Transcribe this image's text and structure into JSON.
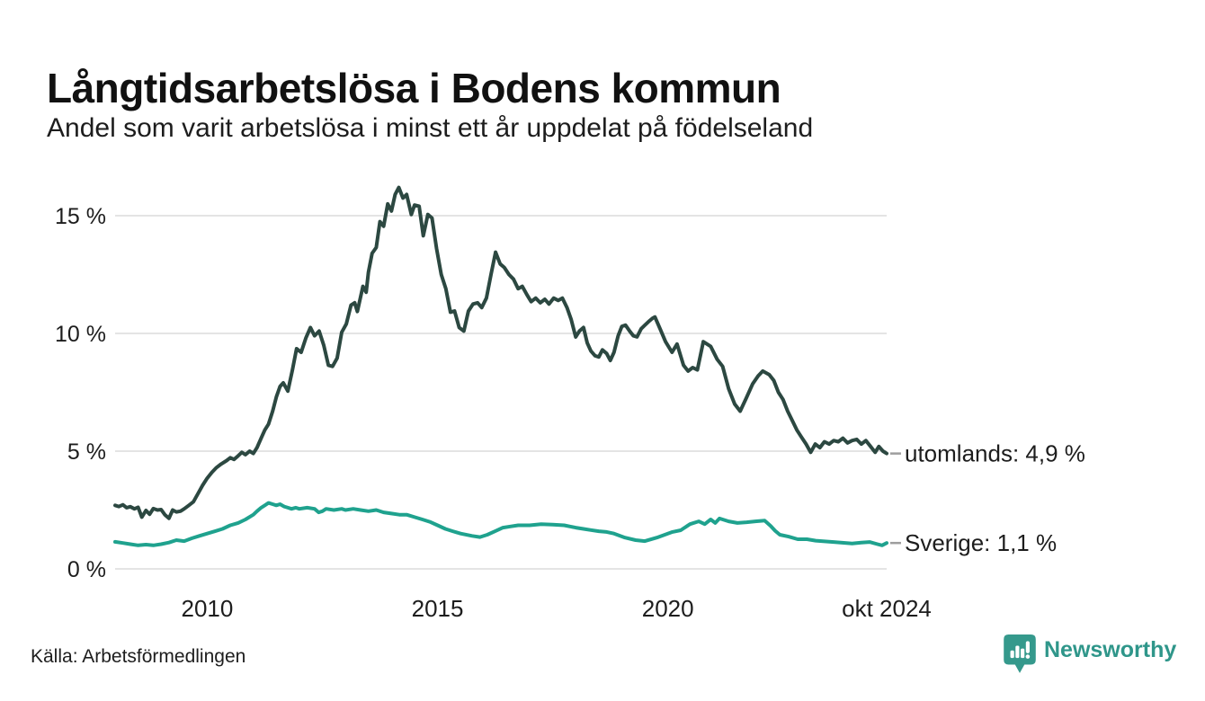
{
  "footer": {
    "source": "Källa: Arbetsförmedlingen",
    "brand": {
      "name": "Newsworthy",
      "icon": "newsworthy-bubble-chart-icon",
      "color": "#35998c"
    }
  },
  "chart_data": {
    "type": "line",
    "title": "Långtidsarbetslösa i Bodens kommun",
    "subtitle": "Andel som varit arbetslösa i minst ett år uppdelat på födelseland",
    "unit": "%",
    "legend_position": "line-end",
    "x_axis": {
      "range": [
        2008.0,
        2024.75
      ],
      "grid": false,
      "ticks": [
        {
          "label": "2010",
          "value": 2010.0
        },
        {
          "label": "2015",
          "value": 2015.0
        },
        {
          "label": "2020",
          "value": 2020.0
        },
        {
          "label": "okt 2024",
          "value": 2024.75
        }
      ]
    },
    "y_axis": {
      "range": [
        0,
        16.5
      ],
      "grid": true,
      "ticks": [
        {
          "label": "0 %",
          "value": 0
        },
        {
          "label": "5 %",
          "value": 5
        },
        {
          "label": "10 %",
          "value": 10
        },
        {
          "label": "15 %",
          "value": 15
        }
      ]
    },
    "series": [
      {
        "name": "utomlands",
        "end_label": "utomlands: 4,9 %",
        "last_value_label": "4,9 %",
        "color": "#2c4841",
        "points": [
          [
            2008.0,
            2.7
          ],
          [
            2008.08,
            2.65
          ],
          [
            2008.17,
            2.72
          ],
          [
            2008.25,
            2.6
          ],
          [
            2008.33,
            2.64
          ],
          [
            2008.42,
            2.55
          ],
          [
            2008.5,
            2.62
          ],
          [
            2008.58,
            2.2
          ],
          [
            2008.67,
            2.48
          ],
          [
            2008.75,
            2.32
          ],
          [
            2008.83,
            2.56
          ],
          [
            2008.92,
            2.5
          ],
          [
            2009.0,
            2.52
          ],
          [
            2009.08,
            2.3
          ],
          [
            2009.17,
            2.15
          ],
          [
            2009.25,
            2.5
          ],
          [
            2009.33,
            2.42
          ],
          [
            2009.42,
            2.45
          ],
          [
            2009.5,
            2.55
          ],
          [
            2009.6,
            2.7
          ],
          [
            2009.7,
            2.85
          ],
          [
            2009.8,
            3.2
          ],
          [
            2009.9,
            3.55
          ],
          [
            2010.0,
            3.85
          ],
          [
            2010.1,
            4.1
          ],
          [
            2010.2,
            4.3
          ],
          [
            2010.3,
            4.45
          ],
          [
            2010.42,
            4.6
          ],
          [
            2010.5,
            4.72
          ],
          [
            2010.58,
            4.65
          ],
          [
            2010.67,
            4.8
          ],
          [
            2010.75,
            4.95
          ],
          [
            2010.83,
            4.85
          ],
          [
            2010.92,
            5.0
          ],
          [
            2011.0,
            4.9
          ],
          [
            2011.08,
            5.15
          ],
          [
            2011.17,
            5.55
          ],
          [
            2011.25,
            5.9
          ],
          [
            2011.33,
            6.15
          ],
          [
            2011.42,
            6.7
          ],
          [
            2011.5,
            7.3
          ],
          [
            2011.58,
            7.75
          ],
          [
            2011.65,
            7.9
          ],
          [
            2011.75,
            7.55
          ],
          [
            2011.85,
            8.45
          ],
          [
            2011.94,
            9.35
          ],
          [
            2012.04,
            9.2
          ],
          [
            2012.14,
            9.8
          ],
          [
            2012.24,
            10.25
          ],
          [
            2012.33,
            9.9
          ],
          [
            2012.43,
            10.1
          ],
          [
            2012.53,
            9.5
          ],
          [
            2012.63,
            8.65
          ],
          [
            2012.72,
            8.6
          ],
          [
            2012.82,
            8.95
          ],
          [
            2012.92,
            10.05
          ],
          [
            2013.02,
            10.4
          ],
          [
            2013.12,
            11.2
          ],
          [
            2013.2,
            11.3
          ],
          [
            2013.26,
            10.93
          ],
          [
            2013.38,
            12.0
          ],
          [
            2013.45,
            11.75
          ],
          [
            2013.5,
            12.6
          ],
          [
            2013.58,
            13.4
          ],
          [
            2013.67,
            13.65
          ],
          [
            2013.75,
            14.75
          ],
          [
            2013.83,
            14.55
          ],
          [
            2013.92,
            15.5
          ],
          [
            2014.0,
            15.2
          ],
          [
            2014.08,
            15.9
          ],
          [
            2014.16,
            16.2
          ],
          [
            2014.25,
            15.75
          ],
          [
            2014.33,
            15.9
          ],
          [
            2014.43,
            15.05
          ],
          [
            2014.5,
            15.45
          ],
          [
            2014.6,
            15.4
          ],
          [
            2014.69,
            14.15
          ],
          [
            2014.79,
            15.05
          ],
          [
            2014.88,
            14.9
          ],
          [
            2014.98,
            13.6
          ],
          [
            2015.08,
            12.5
          ],
          [
            2015.18,
            11.9
          ],
          [
            2015.28,
            10.9
          ],
          [
            2015.37,
            10.95
          ],
          [
            2015.47,
            10.25
          ],
          [
            2015.57,
            10.1
          ],
          [
            2015.67,
            10.95
          ],
          [
            2015.77,
            11.25
          ],
          [
            2015.87,
            11.3
          ],
          [
            2015.96,
            11.1
          ],
          [
            2016.06,
            11.5
          ],
          [
            2016.16,
            12.5
          ],
          [
            2016.26,
            13.45
          ],
          [
            2016.36,
            12.95
          ],
          [
            2016.45,
            12.8
          ],
          [
            2016.55,
            12.5
          ],
          [
            2016.65,
            12.3
          ],
          [
            2016.75,
            11.9
          ],
          [
            2016.84,
            12.0
          ],
          [
            2016.94,
            11.65
          ],
          [
            2017.03,
            11.35
          ],
          [
            2017.13,
            11.5
          ],
          [
            2017.23,
            11.3
          ],
          [
            2017.33,
            11.45
          ],
          [
            2017.42,
            11.25
          ],
          [
            2017.52,
            11.5
          ],
          [
            2017.62,
            11.4
          ],
          [
            2017.71,
            11.5
          ],
          [
            2017.81,
            11.1
          ],
          [
            2017.9,
            10.6
          ],
          [
            2018.0,
            9.85
          ],
          [
            2018.08,
            10.1
          ],
          [
            2018.17,
            10.25
          ],
          [
            2018.25,
            9.6
          ],
          [
            2018.33,
            9.25
          ],
          [
            2018.42,
            9.05
          ],
          [
            2018.5,
            9.0
          ],
          [
            2018.58,
            9.3
          ],
          [
            2018.67,
            9.15
          ],
          [
            2018.75,
            8.85
          ],
          [
            2018.83,
            9.2
          ],
          [
            2018.92,
            9.9
          ],
          [
            2019.0,
            10.3
          ],
          [
            2019.08,
            10.35
          ],
          [
            2019.17,
            10.1
          ],
          [
            2019.25,
            9.9
          ],
          [
            2019.33,
            9.85
          ],
          [
            2019.42,
            10.2
          ],
          [
            2019.5,
            10.35
          ],
          [
            2019.58,
            10.5
          ],
          [
            2019.67,
            10.65
          ],
          [
            2019.72,
            10.7
          ],
          [
            2019.83,
            10.2
          ],
          [
            2019.95,
            9.65
          ],
          [
            2020.09,
            9.2
          ],
          [
            2020.2,
            9.55
          ],
          [
            2020.34,
            8.65
          ],
          [
            2020.44,
            8.4
          ],
          [
            2020.54,
            8.55
          ],
          [
            2020.64,
            8.45
          ],
          [
            2020.77,
            9.65
          ],
          [
            2020.93,
            9.45
          ],
          [
            2021.07,
            8.9
          ],
          [
            2021.19,
            8.6
          ],
          [
            2021.32,
            7.65
          ],
          [
            2021.45,
            7.0
          ],
          [
            2021.57,
            6.7
          ],
          [
            2021.7,
            7.25
          ],
          [
            2021.84,
            7.85
          ],
          [
            2021.96,
            8.2
          ],
          [
            2022.06,
            8.4
          ],
          [
            2022.2,
            8.25
          ],
          [
            2022.3,
            8.0
          ],
          [
            2022.4,
            7.5
          ],
          [
            2022.5,
            7.2
          ],
          [
            2022.6,
            6.7
          ],
          [
            2022.7,
            6.3
          ],
          [
            2022.8,
            5.9
          ],
          [
            2022.9,
            5.6
          ],
          [
            2023.0,
            5.3
          ],
          [
            2023.1,
            4.95
          ],
          [
            2023.2,
            5.3
          ],
          [
            2023.3,
            5.15
          ],
          [
            2023.4,
            5.4
          ],
          [
            2023.5,
            5.3
          ],
          [
            2023.6,
            5.45
          ],
          [
            2023.7,
            5.4
          ],
          [
            2023.8,
            5.55
          ],
          [
            2023.9,
            5.35
          ],
          [
            2024.0,
            5.45
          ],
          [
            2024.1,
            5.5
          ],
          [
            2024.2,
            5.3
          ],
          [
            2024.3,
            5.45
          ],
          [
            2024.4,
            5.2
          ],
          [
            2024.5,
            4.95
          ],
          [
            2024.58,
            5.2
          ],
          [
            2024.67,
            5.0
          ],
          [
            2024.75,
            4.9
          ]
        ]
      },
      {
        "name": "Sverige",
        "end_label": "Sverige: 1,1 %",
        "last_value_label": "1,1 %",
        "color": "#1fa28e",
        "points": [
          [
            2008.0,
            1.15
          ],
          [
            2008.17,
            1.1
          ],
          [
            2008.33,
            1.05
          ],
          [
            2008.5,
            1.0
          ],
          [
            2008.67,
            1.03
          ],
          [
            2008.83,
            1.0
          ],
          [
            2009.0,
            1.05
          ],
          [
            2009.17,
            1.12
          ],
          [
            2009.33,
            1.22
          ],
          [
            2009.5,
            1.18
          ],
          [
            2009.67,
            1.3
          ],
          [
            2009.83,
            1.4
          ],
          [
            2010.0,
            1.5
          ],
          [
            2010.17,
            1.6
          ],
          [
            2010.33,
            1.7
          ],
          [
            2010.5,
            1.85
          ],
          [
            2010.67,
            1.95
          ],
          [
            2010.83,
            2.1
          ],
          [
            2011.0,
            2.3
          ],
          [
            2011.08,
            2.45
          ],
          [
            2011.17,
            2.6
          ],
          [
            2011.25,
            2.7
          ],
          [
            2011.33,
            2.8
          ],
          [
            2011.42,
            2.75
          ],
          [
            2011.5,
            2.7
          ],
          [
            2011.58,
            2.75
          ],
          [
            2011.67,
            2.65
          ],
          [
            2011.75,
            2.6
          ],
          [
            2011.83,
            2.55
          ],
          [
            2011.92,
            2.6
          ],
          [
            2012.0,
            2.55
          ],
          [
            2012.17,
            2.6
          ],
          [
            2012.33,
            2.55
          ],
          [
            2012.42,
            2.4
          ],
          [
            2012.5,
            2.45
          ],
          [
            2012.58,
            2.55
          ],
          [
            2012.75,
            2.5
          ],
          [
            2012.92,
            2.55
          ],
          [
            2013.0,
            2.5
          ],
          [
            2013.17,
            2.55
          ],
          [
            2013.33,
            2.5
          ],
          [
            2013.5,
            2.45
          ],
          [
            2013.67,
            2.5
          ],
          [
            2013.83,
            2.4
          ],
          [
            2014.0,
            2.35
          ],
          [
            2014.17,
            2.3
          ],
          [
            2014.33,
            2.3
          ],
          [
            2014.5,
            2.2
          ],
          [
            2014.67,
            2.1
          ],
          [
            2014.83,
            2.0
          ],
          [
            2015.0,
            1.85
          ],
          [
            2015.17,
            1.7
          ],
          [
            2015.33,
            1.6
          ],
          [
            2015.5,
            1.5
          ],
          [
            2015.75,
            1.4
          ],
          [
            2015.92,
            1.35
          ],
          [
            2016.08,
            1.45
          ],
          [
            2016.25,
            1.6
          ],
          [
            2016.42,
            1.75
          ],
          [
            2016.58,
            1.8
          ],
          [
            2016.75,
            1.85
          ],
          [
            2017.0,
            1.85
          ],
          [
            2017.25,
            1.9
          ],
          [
            2017.5,
            1.88
          ],
          [
            2017.75,
            1.85
          ],
          [
            2018.0,
            1.75
          ],
          [
            2018.17,
            1.7
          ],
          [
            2018.33,
            1.65
          ],
          [
            2018.5,
            1.6
          ],
          [
            2018.67,
            1.57
          ],
          [
            2018.83,
            1.5
          ],
          [
            2019.07,
            1.33
          ],
          [
            2019.3,
            1.22
          ],
          [
            2019.5,
            1.18
          ],
          [
            2019.76,
            1.33
          ],
          [
            2020.1,
            1.57
          ],
          [
            2020.28,
            1.64
          ],
          [
            2020.48,
            1.9
          ],
          [
            2020.67,
            2.02
          ],
          [
            2020.8,
            1.9
          ],
          [
            2020.93,
            2.1
          ],
          [
            2021.03,
            1.95
          ],
          [
            2021.12,
            2.14
          ],
          [
            2021.32,
            2.02
          ],
          [
            2021.51,
            1.95
          ],
          [
            2021.71,
            1.98
          ],
          [
            2021.9,
            2.02
          ],
          [
            2022.1,
            2.05
          ],
          [
            2022.23,
            1.83
          ],
          [
            2022.33,
            1.62
          ],
          [
            2022.43,
            1.45
          ],
          [
            2022.62,
            1.37
          ],
          [
            2022.82,
            1.26
          ],
          [
            2023.02,
            1.26
          ],
          [
            2023.21,
            1.2
          ],
          [
            2023.6,
            1.14
          ],
          [
            2024.0,
            1.08
          ],
          [
            2024.2,
            1.12
          ],
          [
            2024.38,
            1.14
          ],
          [
            2024.55,
            1.05
          ],
          [
            2024.65,
            1.0
          ],
          [
            2024.75,
            1.1
          ]
        ]
      }
    ]
  }
}
